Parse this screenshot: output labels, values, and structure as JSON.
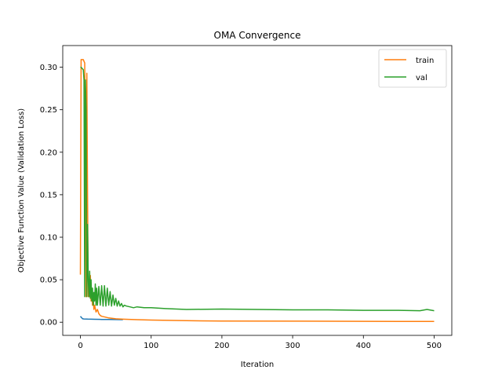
{
  "chart_data": {
    "type": "line",
    "title": "OMA Convergence",
    "xlabel": "Iteration",
    "ylabel": "Objective Function Value (Validation Loss)",
    "xlim": [
      -25,
      525
    ],
    "ylim": [
      -0.0155,
      0.3255
    ],
    "xticks": [
      0,
      100,
      200,
      300,
      400,
      500
    ],
    "yticks": [
      0.0,
      0.05,
      0.1,
      0.15,
      0.2,
      0.25,
      0.3
    ],
    "ytick_labels": [
      "0.00",
      "0.05",
      "0.10",
      "0.15",
      "0.20",
      "0.25",
      "0.30"
    ],
    "grid": false,
    "legend": {
      "placement": "top-right",
      "entries": [
        "train",
        "val"
      ]
    },
    "series": [
      {
        "name": "",
        "color": "#1f77b4",
        "x": [
          0,
          1,
          2,
          3,
          5,
          10,
          20,
          30,
          40,
          50,
          60
        ],
        "y": [
          0.007,
          0.006,
          0.005,
          0.004,
          0.0038,
          0.0036,
          0.0034,
          0.0033,
          0.0032,
          0.0031,
          0.003
        ]
      },
      {
        "name": "train",
        "color": "#ff7f0e",
        "x": [
          0,
          1,
          2,
          4,
          6,
          7,
          8,
          9,
          10,
          11,
          12,
          13,
          14,
          15,
          16,
          17,
          18,
          19,
          20,
          22,
          24,
          26,
          28,
          30,
          35,
          40,
          50,
          60,
          80,
          100,
          150,
          200,
          300,
          400,
          500
        ],
        "y": [
          0.056,
          0.309,
          0.309,
          0.309,
          0.305,
          0.2,
          0.03,
          0.293,
          0.15,
          0.03,
          0.05,
          0.03,
          0.055,
          0.025,
          0.04,
          0.02,
          0.03,
          0.015,
          0.02,
          0.012,
          0.015,
          0.01,
          0.008,
          0.007,
          0.006,
          0.005,
          0.004,
          0.0035,
          0.003,
          0.0025,
          0.0018,
          0.0014,
          0.0012,
          0.001,
          0.0009
        ]
      },
      {
        "name": "val",
        "color": "#2ca02c",
        "x": [
          0,
          1,
          2,
          4,
          5,
          6,
          7,
          8,
          9,
          10,
          11,
          12,
          13,
          14,
          15,
          16,
          17,
          18,
          19,
          20,
          21,
          22,
          23,
          24,
          26,
          28,
          30,
          32,
          34,
          36,
          38,
          40,
          42,
          44,
          46,
          48,
          50,
          52,
          54,
          56,
          58,
          60,
          62,
          65,
          70,
          75,
          80,
          90,
          100,
          120,
          150,
          200,
          250,
          300,
          350,
          400,
          450,
          480,
          490,
          500
        ],
        "y": [
          0.3,
          0.3,
          0.299,
          0.297,
          0.285,
          0.03,
          0.285,
          0.25,
          0.03,
          0.115,
          0.05,
          0.03,
          0.06,
          0.028,
          0.05,
          0.025,
          0.04,
          0.02,
          0.035,
          0.025,
          0.045,
          0.02,
          0.04,
          0.02,
          0.042,
          0.02,
          0.043,
          0.019,
          0.043,
          0.019,
          0.04,
          0.02,
          0.036,
          0.019,
          0.032,
          0.02,
          0.028,
          0.019,
          0.025,
          0.019,
          0.022,
          0.018,
          0.02,
          0.019,
          0.018,
          0.017,
          0.018,
          0.017,
          0.017,
          0.016,
          0.015,
          0.0155,
          0.015,
          0.0145,
          0.0145,
          0.014,
          0.014,
          0.0135,
          0.015,
          0.0135
        ]
      }
    ]
  }
}
